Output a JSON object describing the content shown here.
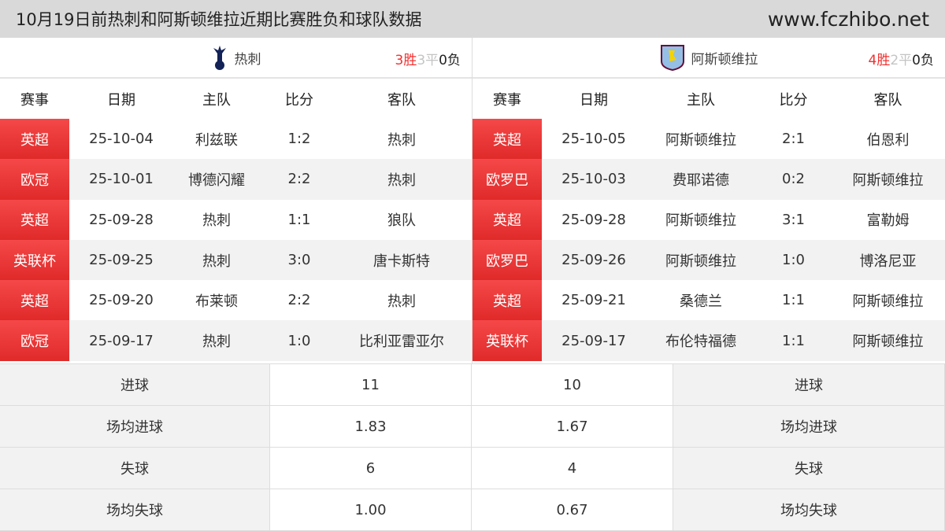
{
  "header": {
    "title": "10月19日前热刺和阿斯顿维拉近期比赛胜负和球队数据",
    "site": "www.fczhibo.net"
  },
  "columns": [
    "赛事",
    "日期",
    "主队",
    "比分",
    "客队"
  ],
  "left": {
    "team": "热刺",
    "logo": "tottenham-crest-icon",
    "wins": "3胜",
    "draws": "3平",
    "losses": "0负",
    "matches": [
      [
        "英超",
        "25-10-04",
        "利兹联",
        "1:2",
        "热刺"
      ],
      [
        "欧冠",
        "25-10-01",
        "博德闪耀",
        "2:2",
        "热刺"
      ],
      [
        "英超",
        "25-09-28",
        "热刺",
        "1:1",
        "狼队"
      ],
      [
        "英联杯",
        "25-09-25",
        "热刺",
        "3:0",
        "唐卡斯特"
      ],
      [
        "英超",
        "25-09-20",
        "布莱顿",
        "2:2",
        "热刺"
      ],
      [
        "欧冠",
        "25-09-17",
        "热刺",
        "1:0",
        "比利亚雷亚尔"
      ]
    ]
  },
  "right": {
    "team": "阿斯顿维拉",
    "logo": "aston-villa-crest-icon",
    "wins": "4胜",
    "draws": "2平",
    "losses": "0负",
    "matches": [
      [
        "英超",
        "25-10-05",
        "阿斯顿维拉",
        "2:1",
        "伯恩利"
      ],
      [
        "欧罗巴",
        "25-10-03",
        "费耶诺德",
        "0:2",
        "阿斯顿维拉"
      ],
      [
        "英超",
        "25-09-28",
        "阿斯顿维拉",
        "3:1",
        "富勒姆"
      ],
      [
        "欧罗巴",
        "25-09-26",
        "阿斯顿维拉",
        "1:0",
        "博洛尼亚"
      ],
      [
        "英超",
        "25-09-21",
        "桑德兰",
        "1:1",
        "阿斯顿维拉"
      ],
      [
        "英联杯",
        "25-09-17",
        "布伦特福德",
        "1:1",
        "阿斯顿维拉"
      ]
    ]
  },
  "stats": [
    {
      "label": "进球",
      "left": "11",
      "right": "10"
    },
    {
      "label": "场均进球",
      "left": "1.83",
      "right": "1.67"
    },
    {
      "label": "失球",
      "left": "6",
      "right": "4"
    },
    {
      "label": "场均失球",
      "left": "1.00",
      "right": "0.67"
    }
  ],
  "colors": {
    "accent": "#e83232",
    "win": "#f23030",
    "draw": "#c4c4c4"
  }
}
